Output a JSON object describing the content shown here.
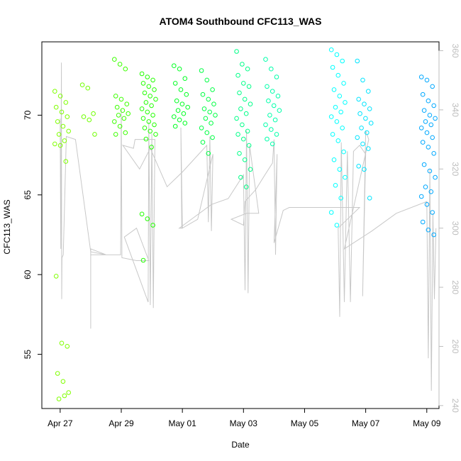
{
  "chart_data": {
    "type": "scatter",
    "title": "ATOM4 Southbound CFC113_WAS",
    "xlabel": "Date",
    "ylabel": "CFC113_WAS",
    "ylabel_right": "",
    "x_ticks": [
      "Apr 27",
      "Apr 29",
      "May 01",
      "May 03",
      "May 05",
      "May 07",
      "May 09"
    ],
    "y_ticks": [
      55,
      60,
      65,
      70
    ],
    "y2_ticks": [
      240,
      260,
      280,
      300,
      320,
      340,
      360
    ],
    "xlim": [
      -0.6,
      12.4
    ],
    "ylim": [
      51.6,
      74.6
    ],
    "y2lim": [
      239,
      363
    ],
    "grid": false,
    "colors": {
      "right_axis": "#bdbdbd",
      "altitude_line": "#c8c8c8",
      "frame": "#000000"
    },
    "series": [
      {
        "day": 0.05,
        "color": "#7fff00",
        "values": [
          71.5,
          71.2,
          70.8,
          70.5,
          70.2,
          69.9,
          69.6,
          69.3,
          69.0,
          68.8,
          68.4,
          68.2,
          68.1,
          67.1,
          59.9,
          55.7,
          55.5,
          53.8,
          53.3,
          52.6,
          52.2,
          52.4
        ]
      },
      {
        "day": 0.95,
        "color": "#6fff00",
        "values": [
          71.9,
          71.7,
          70.1,
          69.9,
          69.7,
          68.8
        ]
      },
      {
        "day": 2.0,
        "color": "#3cff00",
        "values": [
          73.5,
          73.2,
          72.9,
          71.2,
          71.0,
          70.7,
          70.5,
          70.3,
          70.1,
          70.0,
          69.8,
          69.6,
          69.3,
          68.9,
          68.8
        ]
      },
      {
        "day": 2.9,
        "color": "#22ff00",
        "values": [
          72.6,
          72.4,
          72.2,
          72.0,
          71.8,
          71.6,
          71.4,
          71.2,
          71.0,
          70.8,
          70.6,
          70.4,
          70.2,
          70.0,
          69.8,
          69.6,
          69.4,
          69.2,
          69.0,
          68.8,
          68.5,
          68.0,
          63.8,
          63.5,
          63.1,
          60.9
        ]
      },
      {
        "day": 3.95,
        "color": "#00ff22",
        "values": [
          73.1,
          72.9,
          72.3,
          72.0,
          71.6,
          71.3,
          70.9,
          70.7,
          70.5,
          70.3,
          70.1,
          69.9,
          69.7,
          69.5,
          69.3
        ]
      },
      {
        "day": 4.85,
        "color": "#00ff44",
        "values": [
          72.8,
          72.2,
          71.6,
          71.3,
          71.0,
          70.7,
          70.4,
          70.2,
          70.0,
          69.8,
          69.5,
          69.2,
          68.9,
          68.6,
          68.3,
          67.6
        ]
      },
      {
        "day": 6.0,
        "color": "#00ff88",
        "values": [
          74.0,
          73.2,
          72.9,
          72.5,
          72.0,
          71.8,
          71.4,
          71.0,
          70.7,
          70.4,
          70.1,
          69.8,
          69.4,
          69.0,
          68.8,
          68.5,
          68.1,
          67.6,
          67.2,
          66.6,
          66.1,
          65.5
        ]
      },
      {
        "day": 6.95,
        "color": "#00ffaa",
        "values": [
          73.5,
          72.9,
          72.4,
          71.8,
          71.5,
          71.2,
          70.9,
          70.6,
          70.3,
          70.0,
          69.7,
          69.4,
          69.1,
          68.8,
          68.5,
          68.2
        ]
      },
      {
        "day": 9.1,
        "color": "#00ffff",
        "values": [
          74.1,
          73.8,
          73.4,
          73.0,
          72.5,
          72.0,
          71.6,
          71.2,
          70.8,
          70.5,
          70.2,
          69.9,
          69.6,
          69.2,
          68.8,
          68.4,
          67.7,
          67.2,
          66.6,
          66.1,
          65.6,
          64.8,
          63.9,
          63.1
        ]
      },
      {
        "day": 9.95,
        "color": "#00e4ff",
        "values": [
          73.4,
          72.2,
          71.5,
          71.0,
          70.7,
          70.4,
          70.1,
          69.8,
          69.5,
          69.2,
          68.9,
          68.6,
          68.2,
          67.9,
          66.8,
          66.6,
          64.8
        ]
      },
      {
        "day": 12.05,
        "color": "#00a8ff",
        "values": [
          72.4,
          72.2,
          71.8,
          71.3,
          70.9,
          70.6,
          70.3,
          70.0,
          69.8,
          69.6,
          69.4,
          69.2,
          68.9,
          68.6,
          68.3,
          68.0,
          67.6,
          66.9,
          66.5,
          66.1,
          65.5,
          65.2,
          64.9,
          64.4,
          63.9,
          63.3,
          62.8,
          62.5
        ]
      }
    ],
    "altitude_path": [
      [
        0.0,
        337
      ],
      [
        0.02,
        293
      ],
      [
        0.04,
        356
      ],
      [
        0.05,
        276
      ],
      [
        0.06,
        290
      ],
      [
        0.1,
        291
      ],
      [
        0.2,
        331
      ],
      [
        0.5,
        330
      ],
      [
        1.0,
        292
      ],
      [
        1.5,
        291
      ],
      [
        1.0,
        293
      ],
      [
        1.0,
        266
      ],
      [
        1.0,
        291
      ],
      [
        1.98,
        291
      ],
      [
        2.0,
        340
      ],
      [
        2.02,
        290
      ],
      [
        2.5,
        289
      ],
      [
        2.9,
        289
      ],
      [
        2.5,
        300
      ],
      [
        2.1,
        297
      ],
      [
        2.88,
        275
      ],
      [
        2.9,
        336
      ],
      [
        2.95,
        274
      ],
      [
        3.0,
        332
      ],
      [
        3.05,
        273
      ],
      [
        3.1,
        330
      ],
      [
        3.0,
        330
      ],
      [
        2.45,
        330
      ],
      [
        2.4,
        327
      ],
      [
        2.05,
        328
      ],
      [
        2.6,
        320
      ],
      [
        2.95,
        327
      ],
      [
        3.5,
        314
      ],
      [
        4.0,
        319
      ],
      [
        4.8,
        328
      ],
      [
        4.85,
        302
      ],
      [
        4.9,
        331
      ],
      [
        4.95,
        299
      ],
      [
        5.0,
        325
      ],
      [
        4.5,
        303
      ],
      [
        4.0,
        300
      ],
      [
        3.95,
        334
      ],
      [
        3.98,
        300
      ],
      [
        3.9,
        300
      ],
      [
        4.95,
        308
      ],
      [
        5.5,
        310
      ],
      [
        6.0,
        318
      ],
      [
        6.05,
        279
      ],
      [
        6.1,
        333
      ],
      [
        6.15,
        278
      ],
      [
        6.2,
        328
      ],
      [
        6.5,
        305
      ],
      [
        6.1,
        305
      ],
      [
        5.6,
        303
      ],
      [
        6.0,
        301
      ],
      [
        6.05,
        309
      ],
      [
        6.4,
        313
      ],
      [
        6.7,
        318
      ],
      [
        6.95,
        322
      ],
      [
        7.0,
        330
      ],
      [
        7.05,
        291
      ],
      [
        7.1,
        325
      ],
      [
        7.0,
        295
      ],
      [
        7.3,
        306
      ],
      [
        7.5,
        307
      ],
      [
        9.8,
        307
      ],
      [
        9.1,
        300
      ],
      [
        9.15,
        270
      ],
      [
        9.2,
        329
      ],
      [
        9.3,
        275
      ],
      [
        9.4,
        326
      ],
      [
        9.5,
        275
      ],
      [
        9.6,
        326
      ],
      [
        9.8,
        328
      ],
      [
        10.0,
        325
      ],
      [
        9.9,
        277
      ],
      [
        10.0,
        333
      ],
      [
        10.1,
        330
      ],
      [
        9.3,
        293
      ],
      [
        10.2,
        299
      ],
      [
        11.0,
        305
      ],
      [
        12.0,
        309
      ],
      [
        12.05,
        256
      ],
      [
        12.1,
        320
      ],
      [
        12.15,
        245
      ],
      [
        12.2,
        305
      ],
      [
        12.25,
        276
      ],
      [
        12.3,
        300
      ]
    ]
  }
}
